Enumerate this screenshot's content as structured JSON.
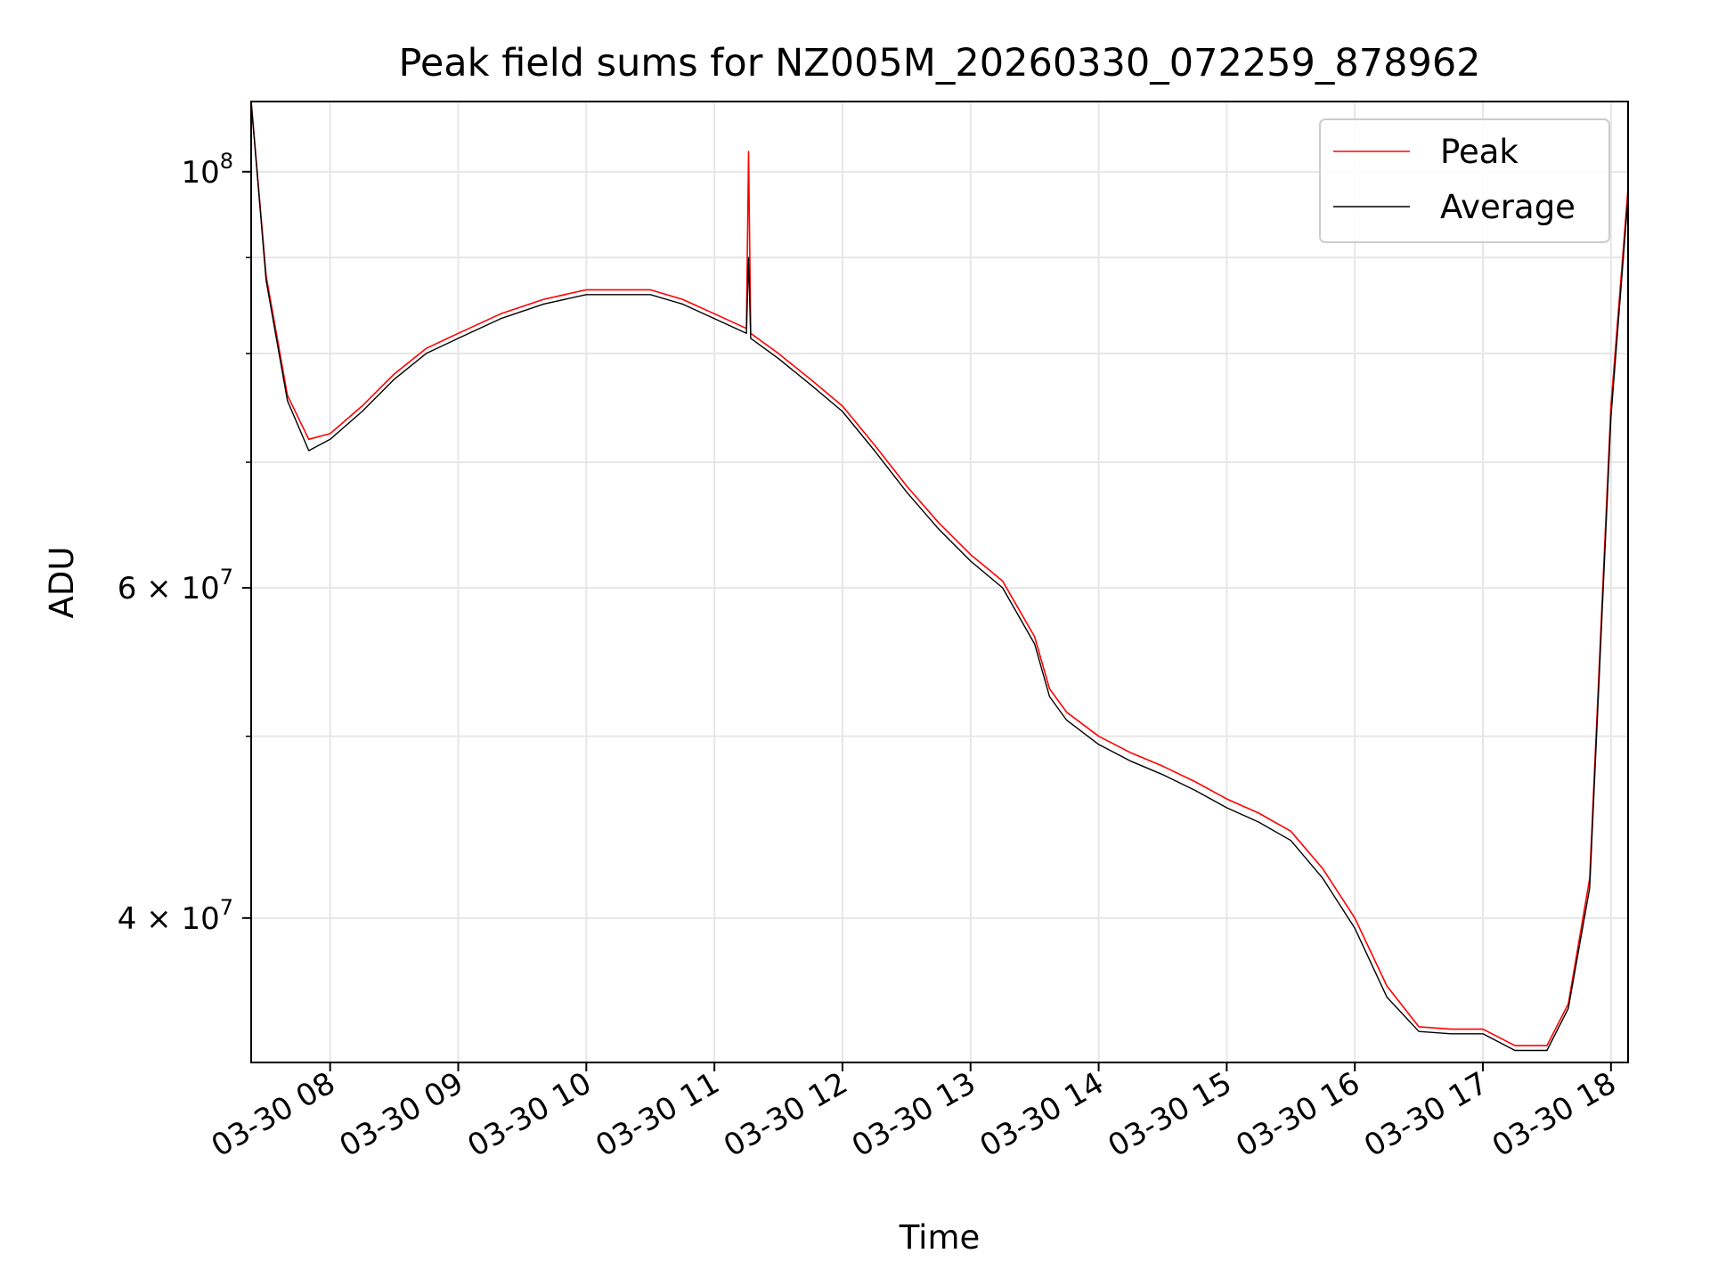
{
  "chart_data": {
    "type": "line",
    "title": "Peak field sums for NZ005M_20260330_072259_878962",
    "xlabel": "Time",
    "ylabel": "ADU",
    "x_range": [
      "2026-03-30 07:23",
      "2026-03-30 18:08"
    ],
    "y_range": [
      33500000,
      109000000
    ],
    "yscale": "log",
    "grid": true,
    "legend_position": "upper right",
    "x_ticks": [
      {
        "label": "03-30 08",
        "value": "2026-03-30 08:00"
      },
      {
        "label": "03-30 09",
        "value": "2026-03-30 09:00"
      },
      {
        "label": "03-30 10",
        "value": "2026-03-30 10:00"
      },
      {
        "label": "03-30 11",
        "value": "2026-03-30 11:00"
      },
      {
        "label": "03-30 12",
        "value": "2026-03-30 12:00"
      },
      {
        "label": "03-30 13",
        "value": "2026-03-30 13:00"
      },
      {
        "label": "03-30 14",
        "value": "2026-03-30 14:00"
      },
      {
        "label": "03-30 15",
        "value": "2026-03-30 15:00"
      },
      {
        "label": "03-30 16",
        "value": "2026-03-30 16:00"
      },
      {
        "label": "03-30 17",
        "value": "2026-03-30 17:00"
      },
      {
        "label": "03-30 18",
        "value": "2026-03-30 18:00"
      }
    ],
    "y_ticks_major": [
      {
        "value": 100000000,
        "base": "10",
        "exp": "8"
      },
      {
        "value": 60000000,
        "mant": "6",
        "base": "10",
        "exp": "7"
      },
      {
        "value": 40000000,
        "mant": "4",
        "base": "10",
        "exp": "7"
      }
    ],
    "y_ticks_minor": [
      90000000,
      80000000,
      70000000,
      50000000
    ],
    "series": [
      {
        "name": "Peak",
        "color": "#ff0000",
        "x": [
          "2026-03-30 07:23",
          "2026-03-30 07:30",
          "2026-03-30 07:40",
          "2026-03-30 07:50",
          "2026-03-30 08:00",
          "2026-03-30 08:15",
          "2026-03-30 08:30",
          "2026-03-30 08:45",
          "2026-03-30 09:00",
          "2026-03-30 09:20",
          "2026-03-30 09:40",
          "2026-03-30 10:00",
          "2026-03-30 10:15",
          "2026-03-30 10:30",
          "2026-03-30 10:45",
          "2026-03-30 11:00",
          "2026-03-30 11:15",
          "2026-03-30 11:16",
          "2026-03-30 11:17",
          "2026-03-30 11:30",
          "2026-03-30 11:45",
          "2026-03-30 12:00",
          "2026-03-30 12:15",
          "2026-03-30 12:30",
          "2026-03-30 12:45",
          "2026-03-30 13:00",
          "2026-03-30 13:15",
          "2026-03-30 13:30",
          "2026-03-30 13:37",
          "2026-03-30 13:45",
          "2026-03-30 14:00",
          "2026-03-30 14:15",
          "2026-03-30 14:30",
          "2026-03-30 14:45",
          "2026-03-30 15:00",
          "2026-03-30 15:15",
          "2026-03-30 15:30",
          "2026-03-30 15:45",
          "2026-03-30 16:00",
          "2026-03-30 16:15",
          "2026-03-30 16:30",
          "2026-03-30 16:45",
          "2026-03-30 17:00",
          "2026-03-30 17:15",
          "2026-03-30 17:30",
          "2026-03-30 17:40",
          "2026-03-30 17:50",
          "2026-03-30 18:00",
          "2026-03-30 18:08"
        ],
        "y": [
          109000000,
          88000000,
          76000000,
          72000000,
          72500000,
          75000000,
          78000000,
          80500000,
          82000000,
          84000000,
          85500000,
          86500000,
          86500000,
          86500000,
          85500000,
          84000000,
          82500000,
          102500000,
          82000000,
          80000000,
          77500000,
          75000000,
          71500000,
          68000000,
          65000000,
          62500000,
          60500000,
          56500000,
          53000000,
          51500000,
          50000000,
          49000000,
          48200000,
          47300000,
          46300000,
          45500000,
          44500000,
          42500000,
          40000000,
          36800000,
          35000000,
          34900000,
          34900000,
          34200000,
          34200000,
          36000000,
          42000000,
          75000000,
          98000000
        ]
      },
      {
        "name": "Average",
        "color": "#000000",
        "x": [
          "2026-03-30 07:23",
          "2026-03-30 07:30",
          "2026-03-30 07:40",
          "2026-03-30 07:50",
          "2026-03-30 08:00",
          "2026-03-30 08:15",
          "2026-03-30 08:30",
          "2026-03-30 08:45",
          "2026-03-30 09:00",
          "2026-03-30 09:20",
          "2026-03-30 09:40",
          "2026-03-30 10:00",
          "2026-03-30 10:15",
          "2026-03-30 10:30",
          "2026-03-30 10:45",
          "2026-03-30 11:00",
          "2026-03-30 11:15",
          "2026-03-30 11:16",
          "2026-03-30 11:17",
          "2026-03-30 11:30",
          "2026-03-30 11:45",
          "2026-03-30 12:00",
          "2026-03-30 12:15",
          "2026-03-30 12:30",
          "2026-03-30 12:45",
          "2026-03-30 13:00",
          "2026-03-30 13:15",
          "2026-03-30 13:30",
          "2026-03-30 13:37",
          "2026-03-30 13:45",
          "2026-03-30 14:00",
          "2026-03-30 14:15",
          "2026-03-30 14:30",
          "2026-03-30 14:45",
          "2026-03-30 15:00",
          "2026-03-30 15:15",
          "2026-03-30 15:30",
          "2026-03-30 15:45",
          "2026-03-30 16:00",
          "2026-03-30 16:15",
          "2026-03-30 16:30",
          "2026-03-30 16:45",
          "2026-03-30 17:00",
          "2026-03-30 17:15",
          "2026-03-30 17:30",
          "2026-03-30 17:40",
          "2026-03-30 17:50",
          "2026-03-30 18:00",
          "2026-03-30 18:08"
        ],
        "y": [
          109000000,
          87500000,
          75500000,
          71000000,
          72000000,
          74500000,
          77500000,
          80000000,
          81500000,
          83500000,
          85000000,
          86000000,
          86000000,
          86000000,
          85000000,
          83500000,
          82000000,
          90000000,
          81500000,
          79500000,
          77000000,
          74500000,
          71000000,
          67500000,
          64500000,
          62000000,
          60000000,
          56000000,
          52500000,
          51000000,
          49500000,
          48500000,
          47700000,
          46800000,
          45800000,
          45000000,
          44000000,
          42000000,
          39500000,
          36300000,
          34800000,
          34700000,
          34700000,
          34000000,
          34000000,
          35800000,
          41500000,
          74000000,
          97000000
        ]
      }
    ]
  }
}
